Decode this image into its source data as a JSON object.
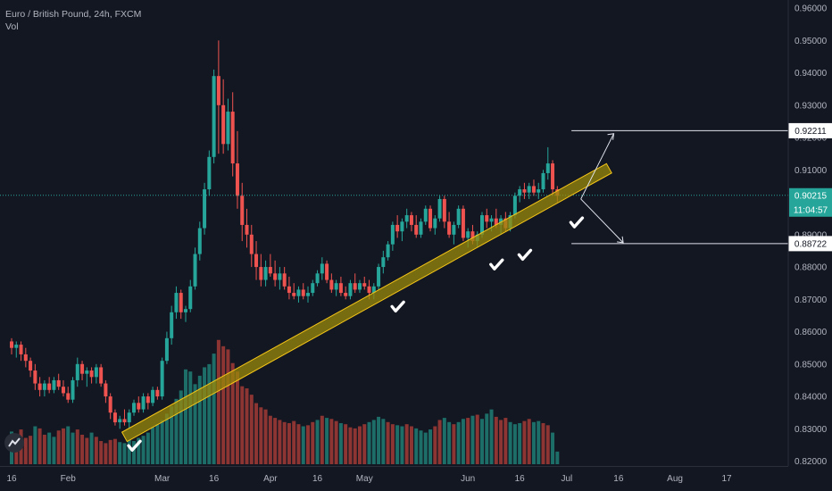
{
  "header": {
    "symbol": "Euro / British Pound, 24h, FXCM",
    "indicator": "Vol"
  },
  "price_labels": {
    "upper_target": "0.92211",
    "current": "0.90215",
    "countdown": "11:04:57",
    "lower_target": "0.88722"
  },
  "colors": {
    "background": "#131722",
    "up": "#26a69a",
    "down": "#ef5350",
    "vol_up": "#1d6e68",
    "vol_down": "#8c3532",
    "trendline_fill": "#9a8a0a",
    "trendline_stroke": "#f5c518",
    "current_line": "#26a69a"
  },
  "chart_data": {
    "type": "candlestick",
    "ylim": [
      0.8185,
      0.9625
    ],
    "y_ticks": [
      "0.82000",
      "0.83000",
      "0.84000",
      "0.85000",
      "0.86000",
      "0.87000",
      "0.88000",
      "0.89000",
      "0.90000",
      "0.91000",
      "0.92000",
      "0.93000",
      "0.94000",
      "0.95000",
      "0.96000"
    ],
    "x_ticks": [
      {
        "label": "16",
        "index": 0
      },
      {
        "label": "Feb",
        "index": 12
      },
      {
        "label": "Mar",
        "index": 32
      },
      {
        "label": "16",
        "index": 43
      },
      {
        "label": "Apr",
        "index": 55
      },
      {
        "label": "16",
        "index": 65
      },
      {
        "label": "May",
        "index": 75
      },
      {
        "label": "Jun",
        "index": 97
      },
      {
        "label": "16",
        "index": 108
      },
      {
        "label": "Jul",
        "index": 118
      },
      {
        "label": "16",
        "index": 129
      },
      {
        "label": "Aug",
        "index": 141
      },
      {
        "label": "17",
        "index": 152
      }
    ],
    "candles": [
      [
        0.857,
        0.858,
        0.853,
        0.855
      ],
      [
        0.855,
        0.857,
        0.852,
        0.856
      ],
      [
        0.856,
        0.857,
        0.851,
        0.853
      ],
      [
        0.853,
        0.855,
        0.849,
        0.851
      ],
      [
        0.851,
        0.852,
        0.846,
        0.848
      ],
      [
        0.848,
        0.85,
        0.842,
        0.844
      ],
      [
        0.844,
        0.846,
        0.84,
        0.842
      ],
      [
        0.842,
        0.845,
        0.84,
        0.844
      ],
      [
        0.844,
        0.846,
        0.841,
        0.842
      ],
      [
        0.842,
        0.846,
        0.841,
        0.845
      ],
      [
        0.845,
        0.847,
        0.842,
        0.843
      ],
      [
        0.843,
        0.845,
        0.84,
        0.841
      ],
      [
        0.841,
        0.843,
        0.838,
        0.839
      ],
      [
        0.839,
        0.846,
        0.838,
        0.845
      ],
      [
        0.845,
        0.852,
        0.843,
        0.85
      ],
      [
        0.85,
        0.851,
        0.845,
        0.847
      ],
      [
        0.847,
        0.849,
        0.843,
        0.848
      ],
      [
        0.848,
        0.849,
        0.844,
        0.846
      ],
      [
        0.846,
        0.85,
        0.844,
        0.849
      ],
      [
        0.849,
        0.85,
        0.843,
        0.844
      ],
      [
        0.844,
        0.845,
        0.838,
        0.84
      ],
      [
        0.84,
        0.841,
        0.833,
        0.835
      ],
      [
        0.835,
        0.836,
        0.831,
        0.832
      ],
      [
        0.832,
        0.834,
        0.83,
        0.833
      ],
      [
        0.833,
        0.836,
        0.831,
        0.832
      ],
      [
        0.832,
        0.836,
        0.83,
        0.835
      ],
      [
        0.835,
        0.839,
        0.834,
        0.838
      ],
      [
        0.838,
        0.84,
        0.835,
        0.836
      ],
      [
        0.836,
        0.841,
        0.835,
        0.84
      ],
      [
        0.84,
        0.841,
        0.836,
        0.838
      ],
      [
        0.838,
        0.843,
        0.837,
        0.842
      ],
      [
        0.842,
        0.843,
        0.839,
        0.84
      ],
      [
        0.84,
        0.852,
        0.839,
        0.851
      ],
      [
        0.851,
        0.86,
        0.85,
        0.858
      ],
      [
        0.858,
        0.868,
        0.856,
        0.866
      ],
      [
        0.866,
        0.874,
        0.864,
        0.872
      ],
      [
        0.872,
        0.873,
        0.864,
        0.866
      ],
      [
        0.866,
        0.868,
        0.863,
        0.867
      ],
      [
        0.867,
        0.876,
        0.866,
        0.874
      ],
      [
        0.874,
        0.886,
        0.873,
        0.884
      ],
      [
        0.884,
        0.894,
        0.882,
        0.892
      ],
      [
        0.892,
        0.906,
        0.89,
        0.904
      ],
      [
        0.904,
        0.916,
        0.902,
        0.914
      ],
      [
        0.914,
        0.941,
        0.912,
        0.939
      ],
      [
        0.939,
        0.95,
        0.915,
        0.93
      ],
      [
        0.93,
        0.938,
        0.915,
        0.918
      ],
      [
        0.918,
        0.932,
        0.916,
        0.928
      ],
      [
        0.928,
        0.934,
        0.908,
        0.912
      ],
      [
        0.912,
        0.922,
        0.898,
        0.902
      ],
      [
        0.902,
        0.906,
        0.888,
        0.893
      ],
      [
        0.893,
        0.898,
        0.886,
        0.89
      ],
      [
        0.89,
        0.893,
        0.88,
        0.884
      ],
      [
        0.884,
        0.888,
        0.876,
        0.88
      ],
      [
        0.88,
        0.884,
        0.874,
        0.876
      ],
      [
        0.876,
        0.882,
        0.874,
        0.88
      ],
      [
        0.88,
        0.884,
        0.877,
        0.878
      ],
      [
        0.878,
        0.882,
        0.874,
        0.876
      ],
      [
        0.876,
        0.88,
        0.873,
        0.878
      ],
      [
        0.878,
        0.88,
        0.873,
        0.874
      ],
      [
        0.874,
        0.877,
        0.87,
        0.872
      ],
      [
        0.872,
        0.875,
        0.87,
        0.871
      ],
      [
        0.871,
        0.874,
        0.869,
        0.873
      ],
      [
        0.873,
        0.875,
        0.87,
        0.871
      ],
      [
        0.871,
        0.874,
        0.869,
        0.872
      ],
      [
        0.872,
        0.876,
        0.871,
        0.875
      ],
      [
        0.875,
        0.879,
        0.874,
        0.878
      ],
      [
        0.878,
        0.883,
        0.876,
        0.881
      ],
      [
        0.881,
        0.882,
        0.875,
        0.876
      ],
      [
        0.876,
        0.878,
        0.872,
        0.873
      ],
      [
        0.873,
        0.876,
        0.871,
        0.875
      ],
      [
        0.875,
        0.877,
        0.871,
        0.872
      ],
      [
        0.872,
        0.874,
        0.87,
        0.871
      ],
      [
        0.871,
        0.876,
        0.87,
        0.875
      ],
      [
        0.875,
        0.878,
        0.872,
        0.873
      ],
      [
        0.873,
        0.876,
        0.872,
        0.875
      ],
      [
        0.875,
        0.877,
        0.873,
        0.874
      ],
      [
        0.874,
        0.876,
        0.87,
        0.872
      ],
      [
        0.872,
        0.875,
        0.87,
        0.874
      ],
      [
        0.874,
        0.881,
        0.873,
        0.88
      ],
      [
        0.88,
        0.885,
        0.878,
        0.883
      ],
      [
        0.883,
        0.888,
        0.882,
        0.887
      ],
      [
        0.887,
        0.894,
        0.885,
        0.893
      ],
      [
        0.893,
        0.896,
        0.889,
        0.891
      ],
      [
        0.891,
        0.895,
        0.888,
        0.894
      ],
      [
        0.894,
        0.898,
        0.892,
        0.896
      ],
      [
        0.896,
        0.897,
        0.891,
        0.893
      ],
      [
        0.893,
        0.896,
        0.889,
        0.89
      ],
      [
        0.89,
        0.895,
        0.889,
        0.894
      ],
      [
        0.894,
        0.899,
        0.893,
        0.898
      ],
      [
        0.898,
        0.899,
        0.891,
        0.892
      ],
      [
        0.892,
        0.896,
        0.89,
        0.895
      ],
      [
        0.895,
        0.902,
        0.894,
        0.901
      ],
      [
        0.901,
        0.902,
        0.892,
        0.894
      ],
      [
        0.894,
        0.897,
        0.889,
        0.89
      ],
      [
        0.89,
        0.894,
        0.887,
        0.893
      ],
      [
        0.893,
        0.899,
        0.892,
        0.898
      ],
      [
        0.898,
        0.899,
        0.888,
        0.889
      ],
      [
        0.889,
        0.892,
        0.886,
        0.891
      ],
      [
        0.891,
        0.893,
        0.887,
        0.888
      ],
      [
        0.888,
        0.891,
        0.886,
        0.89
      ],
      [
        0.89,
        0.897,
        0.889,
        0.896
      ],
      [
        0.896,
        0.898,
        0.892,
        0.894
      ],
      [
        0.894,
        0.896,
        0.891,
        0.895
      ],
      [
        0.895,
        0.898,
        0.892,
        0.893
      ],
      [
        0.893,
        0.896,
        0.89,
        0.895
      ],
      [
        0.895,
        0.897,
        0.891,
        0.892
      ],
      [
        0.892,
        0.897,
        0.891,
        0.896
      ],
      [
        0.896,
        0.903,
        0.895,
        0.902
      ],
      [
        0.902,
        0.905,
        0.9,
        0.904
      ],
      [
        0.904,
        0.906,
        0.901,
        0.903
      ],
      [
        0.903,
        0.906,
        0.901,
        0.905
      ],
      [
        0.905,
        0.907,
        0.902,
        0.903
      ],
      [
        0.903,
        0.906,
        0.901,
        0.904
      ],
      [
        0.904,
        0.91,
        0.903,
        0.909
      ],
      [
        0.909,
        0.917,
        0.907,
        0.912
      ],
      [
        0.912,
        0.913,
        0.902,
        0.904
      ],
      [
        0.904,
        0.905,
        0.9,
        0.902
      ]
    ],
    "volume": [
      [
        31,
        1
      ],
      [
        29,
        0
      ],
      [
        33,
        0
      ],
      [
        25,
        0
      ],
      [
        27,
        0
      ],
      [
        36,
        1
      ],
      [
        34,
        0
      ],
      [
        28,
        0
      ],
      [
        30,
        1
      ],
      [
        26,
        1
      ],
      [
        32,
        0
      ],
      [
        34,
        0
      ],
      [
        36,
        1
      ],
      [
        30,
        1
      ],
      [
        33,
        0
      ],
      [
        28,
        0
      ],
      [
        25,
        0
      ],
      [
        30,
        1
      ],
      [
        26,
        0
      ],
      [
        22,
        0
      ],
      [
        20,
        0
      ],
      [
        23,
        0
      ],
      [
        24,
        0
      ],
      [
        21,
        1
      ],
      [
        20,
        1
      ],
      [
        23,
        1
      ],
      [
        22,
        1
      ],
      [
        25,
        1
      ],
      [
        27,
        1
      ],
      [
        30,
        1
      ],
      [
        35,
        1
      ],
      [
        38,
        1
      ],
      [
        42,
        1
      ],
      [
        48,
        1
      ],
      [
        55,
        1
      ],
      [
        62,
        1
      ],
      [
        70,
        1
      ],
      [
        90,
        1
      ],
      [
        88,
        1
      ],
      [
        76,
        1
      ],
      [
        84,
        1
      ],
      [
        92,
        1
      ],
      [
        95,
        1
      ],
      [
        105,
        1
      ],
      [
        118,
        0
      ],
      [
        112,
        0
      ],
      [
        109,
        0
      ],
      [
        96,
        0
      ],
      [
        88,
        0
      ],
      [
        74,
        0
      ],
      [
        72,
        0
      ],
      [
        66,
        0
      ],
      [
        58,
        0
      ],
      [
        54,
        0
      ],
      [
        52,
        0
      ],
      [
        46,
        0
      ],
      [
        44,
        0
      ],
      [
        42,
        0
      ],
      [
        40,
        0
      ],
      [
        39,
        0
      ],
      [
        41,
        0
      ],
      [
        38,
        0
      ],
      [
        36,
        1
      ],
      [
        37,
        0
      ],
      [
        40,
        0
      ],
      [
        42,
        1
      ],
      [
        46,
        0
      ],
      [
        44,
        1
      ],
      [
        43,
        0
      ],
      [
        41,
        0
      ],
      [
        39,
        1
      ],
      [
        38,
        0
      ],
      [
        35,
        0
      ],
      [
        34,
        0
      ],
      [
        36,
        0
      ],
      [
        38,
        0
      ],
      [
        40,
        1
      ],
      [
        42,
        1
      ],
      [
        45,
        1
      ],
      [
        43,
        1
      ],
      [
        40,
        0
      ],
      [
        38,
        0
      ],
      [
        37,
        1
      ],
      [
        36,
        1
      ],
      [
        38,
        0
      ],
      [
        36,
        0
      ],
      [
        34,
        1
      ],
      [
        32,
        1
      ],
      [
        30,
        1
      ],
      [
        33,
        1
      ],
      [
        36,
        0
      ],
      [
        42,
        0
      ],
      [
        44,
        1
      ],
      [
        40,
        1
      ],
      [
        38,
        0
      ],
      [
        40,
        1
      ],
      [
        43,
        1
      ],
      [
        44,
        0
      ],
      [
        46,
        1
      ],
      [
        47,
        0
      ],
      [
        43,
        1
      ],
      [
        48,
        1
      ],
      [
        52,
        1
      ],
      [
        45,
        0
      ],
      [
        42,
        0
      ],
      [
        44,
        0
      ],
      [
        40,
        1
      ],
      [
        38,
        1
      ],
      [
        39,
        1
      ],
      [
        41,
        0
      ],
      [
        43,
        0
      ],
      [
        40,
        1
      ],
      [
        41,
        1
      ],
      [
        39,
        0
      ],
      [
        37,
        0
      ],
      [
        30,
        1
      ],
      [
        12,
        1
      ]
    ],
    "horizontal_levels": {
      "upper": 0.92211,
      "current": 0.90215,
      "lower": 0.88722
    },
    "trendline": {
      "from": [
        24,
        0.8275
      ],
      "to": [
        127,
        0.9105
      ]
    },
    "checkmarks": [
      {
        "index": 26,
        "price": 0.8245
      },
      {
        "index": 82,
        "price": 0.8675
      },
      {
        "index": 103,
        "price": 0.8805
      },
      {
        "index": 109,
        "price": 0.8835
      },
      {
        "index": 120,
        "price": 0.8935
      }
    ],
    "projection": {
      "origin": [
        121,
        0.901
      ],
      "upper_arrow": [
        128,
        0.9212
      ],
      "lower_arrow": [
        130,
        0.8875
      ],
      "bracket_x_start": 119
    }
  }
}
